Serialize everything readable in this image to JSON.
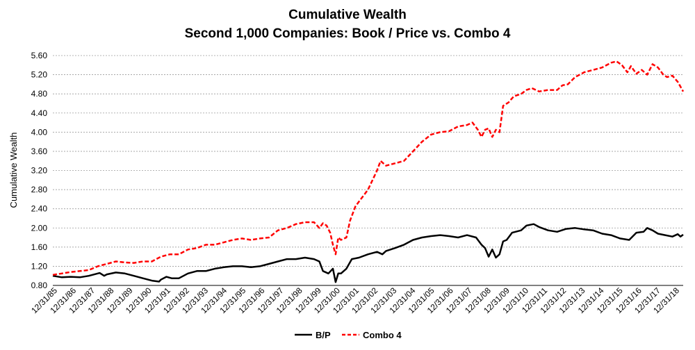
{
  "chart_data": {
    "type": "line",
    "title": "Cumulative Wealth",
    "subtitle": "Second 1,000 Companies:  Book / Price vs. Combo 4",
    "ylabel": "Cumulative Wealth",
    "xlabel": "",
    "ylim": [
      0.8,
      5.6
    ],
    "yticks": [
      "0.80",
      "1.20",
      "1.60",
      "2.00",
      "2.40",
      "2.80",
      "3.20",
      "3.60",
      "4.00",
      "4.40",
      "4.80",
      "5.20",
      "5.60"
    ],
    "grid": true,
    "legend": "bottom",
    "categories": [
      "12/31/85",
      "12/31/86",
      "12/31/87",
      "12/31/88",
      "12/31/89",
      "12/31/90",
      "12/31/91",
      "12/31/92",
      "12/31/93",
      "12/31/94",
      "12/31/95",
      "12/31/96",
      "12/31/97",
      "12/31/98",
      "12/31/99",
      "12/31/00",
      "12/31/01",
      "12/31/02",
      "12/31/03",
      "12/31/04",
      "12/31/05",
      "12/31/06",
      "12/31/07",
      "12/31/08",
      "12/31/09",
      "12/31/10",
      "12/31/11",
      "12/31/12",
      "12/31/13",
      "12/31/14",
      "12/31/15",
      "12/31/16",
      "12/31/17",
      "12/31/18"
    ],
    "series": [
      {
        "name": "B/P",
        "color": "#000000",
        "dash": "solid",
        "points": [
          [
            1985.0,
            1.0
          ],
          [
            1985.5,
            0.97
          ],
          [
            1986.0,
            0.98
          ],
          [
            1986.5,
            0.97
          ],
          [
            1987.0,
            1.0
          ],
          [
            1987.6,
            1.06
          ],
          [
            1987.85,
            1.0
          ],
          [
            1988.0,
            1.03
          ],
          [
            1988.5,
            1.07
          ],
          [
            1989.0,
            1.05
          ],
          [
            1989.5,
            1.0
          ],
          [
            1990.0,
            0.95
          ],
          [
            1990.5,
            0.9
          ],
          [
            1990.9,
            0.88
          ],
          [
            1991.0,
            0.92
          ],
          [
            1991.3,
            0.98
          ],
          [
            1991.6,
            0.95
          ],
          [
            1992.0,
            0.95
          ],
          [
            1992.5,
            1.05
          ],
          [
            1993.0,
            1.1
          ],
          [
            1993.5,
            1.1
          ],
          [
            1994.0,
            1.15
          ],
          [
            1994.5,
            1.18
          ],
          [
            1995.0,
            1.2
          ],
          [
            1995.5,
            1.2
          ],
          [
            1996.0,
            1.18
          ],
          [
            1996.5,
            1.2
          ],
          [
            1997.0,
            1.25
          ],
          [
            1997.5,
            1.3
          ],
          [
            1998.0,
            1.35
          ],
          [
            1998.5,
            1.35
          ],
          [
            1999.0,
            1.38
          ],
          [
            1999.5,
            1.35
          ],
          [
            1999.8,
            1.3
          ],
          [
            2000.0,
            1.1
          ],
          [
            2000.3,
            1.05
          ],
          [
            2000.55,
            1.15
          ],
          [
            2000.7,
            0.87
          ],
          [
            2000.85,
            1.05
          ],
          [
            2001.0,
            1.05
          ],
          [
            2001.3,
            1.15
          ],
          [
            2001.6,
            1.35
          ],
          [
            2002.0,
            1.38
          ],
          [
            2002.5,
            1.45
          ],
          [
            2003.0,
            1.5
          ],
          [
            2003.3,
            1.45
          ],
          [
            2003.5,
            1.52
          ],
          [
            2004.0,
            1.58
          ],
          [
            2004.5,
            1.65
          ],
          [
            2005.0,
            1.75
          ],
          [
            2005.5,
            1.8
          ],
          [
            2006.0,
            1.83
          ],
          [
            2006.5,
            1.85
          ],
          [
            2007.0,
            1.83
          ],
          [
            2007.5,
            1.8
          ],
          [
            2008.0,
            1.85
          ],
          [
            2008.5,
            1.8
          ],
          [
            2008.8,
            1.65
          ],
          [
            2009.0,
            1.58
          ],
          [
            2009.2,
            1.4
          ],
          [
            2009.4,
            1.55
          ],
          [
            2009.6,
            1.38
          ],
          [
            2009.8,
            1.45
          ],
          [
            2010.0,
            1.72
          ],
          [
            2010.2,
            1.75
          ],
          [
            2010.5,
            1.9
          ],
          [
            2011.0,
            1.95
          ],
          [
            2011.3,
            2.05
          ],
          [
            2011.7,
            2.08
          ],
          [
            2012.0,
            2.02
          ],
          [
            2012.5,
            1.95
          ],
          [
            2013.0,
            1.92
          ],
          [
            2013.5,
            1.98
          ],
          [
            2014.0,
            2.0
          ],
          [
            2014.5,
            1.97
          ],
          [
            2015.0,
            1.95
          ],
          [
            2015.5,
            1.88
          ],
          [
            2016.0,
            1.85
          ],
          [
            2016.5,
            1.78
          ],
          [
            2017.0,
            1.75
          ],
          [
            2017.4,
            1.9
          ],
          [
            2017.8,
            1.92
          ],
          [
            2018.0,
            2.0
          ],
          [
            2018.3,
            1.95
          ],
          [
            2018.6,
            1.88
          ],
          [
            2019.0,
            1.85
          ],
          [
            2019.4,
            1.82
          ],
          [
            2019.7,
            1.87
          ],
          [
            2019.85,
            1.82
          ],
          [
            2020.0,
            1.86
          ]
        ]
      },
      {
        "name": "Combo 4",
        "color": "#ff0000",
        "dash": "dashed",
        "points": [
          [
            1985.0,
            1.02
          ],
          [
            1985.5,
            1.05
          ],
          [
            1986.0,
            1.08
          ],
          [
            1986.5,
            1.1
          ],
          [
            1987.0,
            1.12
          ],
          [
            1987.5,
            1.2
          ],
          [
            1988.0,
            1.25
          ],
          [
            1988.5,
            1.3
          ],
          [
            1989.0,
            1.28
          ],
          [
            1989.5,
            1.27
          ],
          [
            1990.0,
            1.3
          ],
          [
            1990.5,
            1.3
          ],
          [
            1991.0,
            1.4
          ],
          [
            1991.5,
            1.45
          ],
          [
            1992.0,
            1.45
          ],
          [
            1992.5,
            1.55
          ],
          [
            1993.0,
            1.58
          ],
          [
            1993.5,
            1.65
          ],
          [
            1994.0,
            1.65
          ],
          [
            1994.5,
            1.7
          ],
          [
            1995.0,
            1.75
          ],
          [
            1995.5,
            1.78
          ],
          [
            1996.0,
            1.75
          ],
          [
            1996.5,
            1.78
          ],
          [
            1997.0,
            1.8
          ],
          [
            1997.5,
            1.95
          ],
          [
            1998.0,
            2.0
          ],
          [
            1998.5,
            2.08
          ],
          [
            1999.0,
            2.12
          ],
          [
            1999.5,
            2.12
          ],
          [
            1999.8,
            2.0
          ],
          [
            2000.0,
            2.1
          ],
          [
            2000.2,
            2.05
          ],
          [
            2000.4,
            1.9
          ],
          [
            2000.55,
            1.65
          ],
          [
            2000.7,
            1.45
          ],
          [
            2000.85,
            1.8
          ],
          [
            2001.0,
            1.75
          ],
          [
            2001.3,
            1.8
          ],
          [
            2001.5,
            2.15
          ],
          [
            2001.8,
            2.45
          ],
          [
            2002.0,
            2.55
          ],
          [
            2002.5,
            2.8
          ],
          [
            2003.0,
            3.2
          ],
          [
            2003.2,
            3.4
          ],
          [
            2003.5,
            3.3
          ],
          [
            2004.0,
            3.35
          ],
          [
            2004.5,
            3.4
          ],
          [
            2005.0,
            3.6
          ],
          [
            2005.5,
            3.8
          ],
          [
            2006.0,
            3.95
          ],
          [
            2006.5,
            4.0
          ],
          [
            2007.0,
            4.02
          ],
          [
            2007.5,
            4.12
          ],
          [
            2008.0,
            4.15
          ],
          [
            2008.3,
            4.2
          ],
          [
            2008.6,
            4.05
          ],
          [
            2008.8,
            3.9
          ],
          [
            2009.0,
            4.05
          ],
          [
            2009.2,
            4.08
          ],
          [
            2009.4,
            3.9
          ],
          [
            2009.6,
            4.05
          ],
          [
            2009.8,
            4.0
          ],
          [
            2010.0,
            4.55
          ],
          [
            2010.3,
            4.62
          ],
          [
            2010.6,
            4.75
          ],
          [
            2011.0,
            4.8
          ],
          [
            2011.3,
            4.88
          ],
          [
            2011.6,
            4.92
          ],
          [
            2012.0,
            4.85
          ],
          [
            2012.5,
            4.88
          ],
          [
            2013.0,
            4.88
          ],
          [
            2013.3,
            4.98
          ],
          [
            2013.6,
            5.0
          ],
          [
            2014.0,
            5.15
          ],
          [
            2014.5,
            5.25
          ],
          [
            2015.0,
            5.3
          ],
          [
            2015.5,
            5.35
          ],
          [
            2016.0,
            5.45
          ],
          [
            2016.3,
            5.48
          ],
          [
            2016.6,
            5.4
          ],
          [
            2016.9,
            5.25
          ],
          [
            2017.1,
            5.38
          ],
          [
            2017.4,
            5.22
          ],
          [
            2017.7,
            5.3
          ],
          [
            2018.0,
            5.2
          ],
          [
            2018.3,
            5.42
          ],
          [
            2018.6,
            5.35
          ],
          [
            2018.9,
            5.2
          ],
          [
            2019.1,
            5.15
          ],
          [
            2019.4,
            5.18
          ],
          [
            2019.7,
            5.05
          ],
          [
            2019.85,
            4.95
          ],
          [
            2020.0,
            4.85
          ]
        ]
      }
    ]
  }
}
